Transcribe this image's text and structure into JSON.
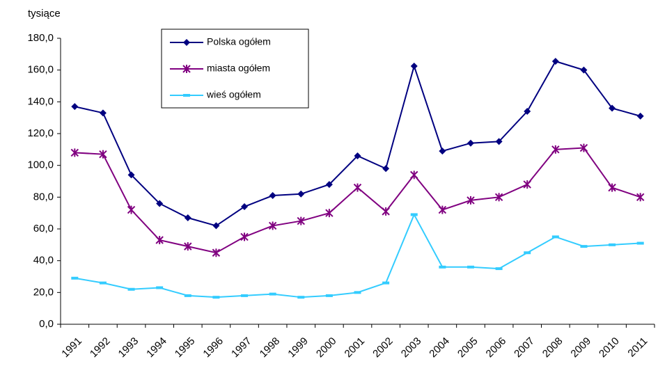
{
  "chart_data": {
    "type": "line",
    "y_axis_label": "tysiące",
    "categories": [
      "1991",
      "1992",
      "1993",
      "1994",
      "1995",
      "1996",
      "1997",
      "1998",
      "1999",
      "2000",
      "2001",
      "2002",
      "2003",
      "2004",
      "2005",
      "2006",
      "2007",
      "2008",
      "2009",
      "2010",
      "2011"
    ],
    "series": [
      {
        "name": "Polska ogółem",
        "color": "#000080",
        "marker": "diamond",
        "values": [
          137,
          133,
          94,
          76,
          67,
          62,
          74,
          81,
          82,
          88,
          106,
          98,
          162.5,
          109,
          114,
          115,
          134,
          165.5,
          160,
          136,
          131
        ]
      },
      {
        "name": "miasta ogółem",
        "color": "#800080",
        "marker": "asterisk",
        "values": [
          108,
          107,
          72,
          53,
          49,
          45,
          55,
          62,
          65,
          70,
          86,
          71,
          94,
          72,
          78,
          80,
          88,
          110,
          111,
          86,
          80
        ]
      },
      {
        "name": "wieś ogółem",
        "color": "#33ccff",
        "marker": "dash",
        "values": [
          29,
          26,
          22,
          23,
          18,
          17,
          18,
          19,
          17,
          18,
          20,
          26,
          69,
          36,
          36,
          35,
          45,
          55,
          49,
          50,
          51
        ]
      }
    ],
    "ylim": [
      0,
      180
    ],
    "yticks": [
      {
        "value": 0,
        "label": "0,0"
      },
      {
        "value": 20,
        "label": "20,0"
      },
      {
        "value": 40,
        "label": "40,0"
      },
      {
        "value": 60,
        "label": "60,0"
      },
      {
        "value": 80,
        "label": "80,0"
      },
      {
        "value": 100,
        "label": "100,0"
      },
      {
        "value": 120,
        "label": "120,0"
      },
      {
        "value": 140,
        "label": "140,0"
      },
      {
        "value": 160,
        "label": "160,0"
      },
      {
        "value": 180,
        "label": "180,0"
      }
    ],
    "grid": false,
    "legend": "upper left"
  }
}
